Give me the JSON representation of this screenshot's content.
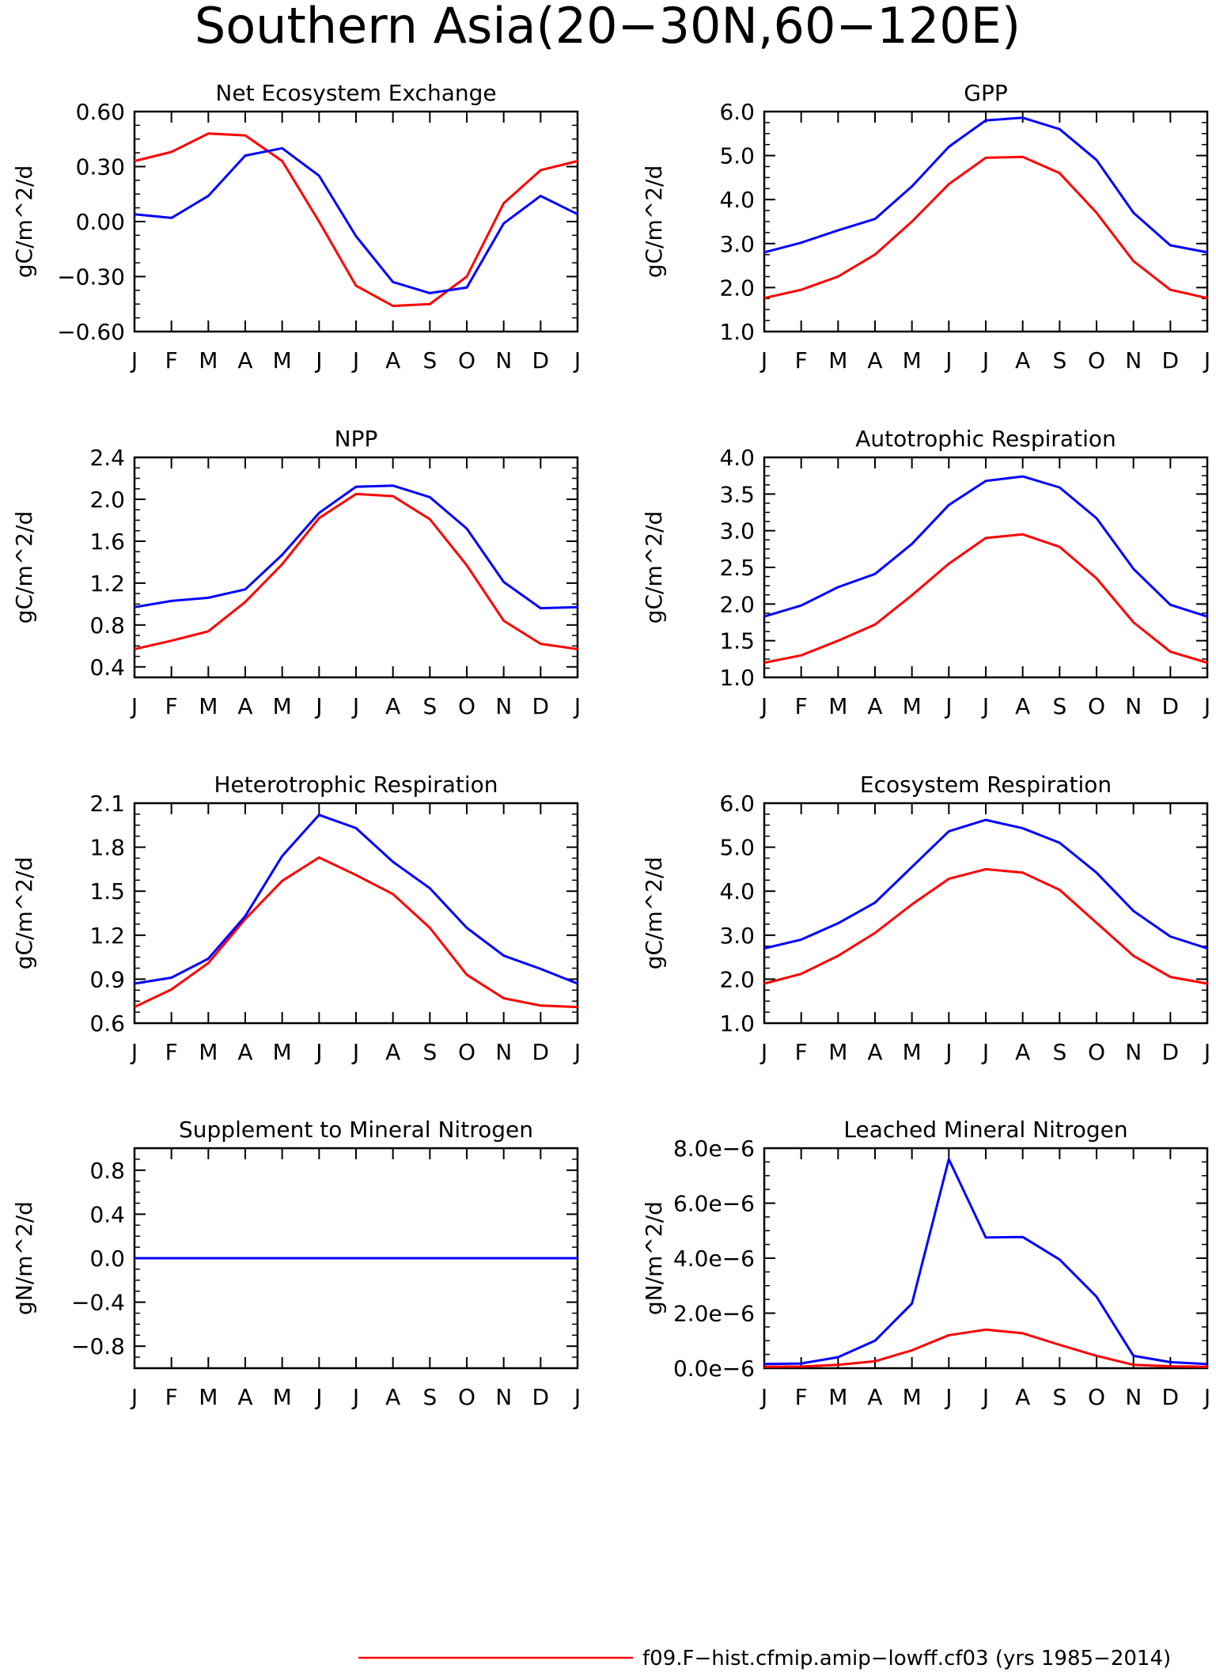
{
  "figure": {
    "title": "Southern Asia(20−30N,60−120E)",
    "legend": {
      "entries": [
        {
          "label": "f09.F−hist.cfmip.amip−lowff.cf03 (yrs 1985−2014)",
          "color": "#ff0000"
        }
      ],
      "placement": "bottom-center"
    }
  },
  "chart_data": [
    {
      "type": "line",
      "title": "Net Ecosystem Exchange",
      "ylabel": "gC/m^2/d",
      "categories": [
        "J",
        "F",
        "M",
        "A",
        "M",
        "J",
        "J",
        "A",
        "S",
        "O",
        "N",
        "D",
        "J"
      ],
      "ylim": [
        -0.6,
        0.6
      ],
      "yticks": [
        "0.60",
        "0.30",
        "0.00",
        "−0.30",
        "−0.60"
      ],
      "ytick_values": [
        0.6,
        0.3,
        0.0,
        -0.3,
        -0.6
      ],
      "grid": false,
      "series": [
        {
          "color": "#ff0000",
          "values": [
            0.33,
            0.38,
            0.48,
            0.47,
            0.33,
            0.0,
            -0.35,
            -0.46,
            -0.45,
            -0.3,
            0.1,
            0.28,
            0.33
          ]
        },
        {
          "color": "#0000ff",
          "values": [
            0.04,
            0.02,
            0.14,
            0.36,
            0.4,
            0.25,
            -0.08,
            -0.33,
            -0.39,
            -0.36,
            -0.01,
            0.14,
            0.04
          ]
        }
      ]
    },
    {
      "type": "line",
      "title": "GPP",
      "ylabel": "gC/m^2/d",
      "categories": [
        "J",
        "F",
        "M",
        "A",
        "M",
        "J",
        "J",
        "A",
        "S",
        "O",
        "N",
        "D",
        "J"
      ],
      "ylim": [
        1.0,
        6.0
      ],
      "yticks": [
        "6.0",
        "5.0",
        "4.0",
        "3.0",
        "2.0",
        "1.0"
      ],
      "ytick_values": [
        6.0,
        5.0,
        4.0,
        3.0,
        2.0,
        1.0
      ],
      "grid": false,
      "series": [
        {
          "color": "#ff0000",
          "values": [
            1.76,
            1.95,
            2.25,
            2.75,
            3.5,
            4.35,
            4.95,
            4.97,
            4.6,
            3.7,
            2.6,
            1.95,
            1.76
          ]
        },
        {
          "color": "#0000ff",
          "values": [
            2.8,
            3.02,
            3.3,
            3.56,
            4.3,
            5.2,
            5.8,
            5.86,
            5.6,
            4.9,
            3.7,
            2.96,
            2.8
          ]
        }
      ]
    },
    {
      "type": "line",
      "title": "NPP",
      "ylabel": "gC/m^2/d",
      "categories": [
        "J",
        "F",
        "M",
        "A",
        "M",
        "J",
        "J",
        "A",
        "S",
        "O",
        "N",
        "D",
        "J"
      ],
      "ylim": [
        0.3,
        2.4
      ],
      "yticks": [
        "2.4",
        "2.0",
        "1.6",
        "1.2",
        "0.8",
        "0.4"
      ],
      "ytick_values": [
        2.4,
        2.0,
        1.6,
        1.2,
        0.8,
        0.4
      ],
      "grid": false,
      "series": [
        {
          "color": "#ff0000",
          "values": [
            0.57,
            0.65,
            0.74,
            1.02,
            1.38,
            1.82,
            2.05,
            2.03,
            1.81,
            1.37,
            0.84,
            0.62,
            0.57
          ]
        },
        {
          "color": "#0000ff",
          "values": [
            0.97,
            1.03,
            1.06,
            1.14,
            1.47,
            1.87,
            2.12,
            2.13,
            2.02,
            1.72,
            1.21,
            0.96,
            0.97
          ]
        }
      ]
    },
    {
      "type": "line",
      "title": "Autotrophic Respiration",
      "ylabel": "gC/m^2/d",
      "categories": [
        "J",
        "F",
        "M",
        "A",
        "M",
        "J",
        "J",
        "A",
        "S",
        "O",
        "N",
        "D",
        "J"
      ],
      "ylim": [
        1.0,
        4.0
      ],
      "yticks": [
        "4.0",
        "3.5",
        "3.0",
        "2.5",
        "2.0",
        "1.5",
        "1.0"
      ],
      "ytick_values": [
        4.0,
        3.5,
        3.0,
        2.5,
        2.0,
        1.5,
        1.0
      ],
      "grid": false,
      "series": [
        {
          "color": "#ff0000",
          "values": [
            1.2,
            1.3,
            1.5,
            1.72,
            2.12,
            2.55,
            2.9,
            2.95,
            2.78,
            2.35,
            1.75,
            1.35,
            1.2
          ]
        },
        {
          "color": "#0000ff",
          "values": [
            1.83,
            1.98,
            2.23,
            2.41,
            2.82,
            3.35,
            3.68,
            3.74,
            3.59,
            3.17,
            2.48,
            1.99,
            1.83
          ]
        }
      ]
    },
    {
      "type": "line",
      "title": "Heterotrophic Respiration",
      "ylabel": "gC/m^2/d",
      "categories": [
        "J",
        "F",
        "M",
        "A",
        "M",
        "J",
        "J",
        "A",
        "S",
        "O",
        "N",
        "D",
        "J"
      ],
      "ylim": [
        0.6,
        2.1
      ],
      "yticks": [
        "2.1",
        "1.8",
        "1.5",
        "1.2",
        "0.9",
        "0.6"
      ],
      "ytick_values": [
        2.1,
        1.8,
        1.5,
        1.2,
        0.9,
        0.6
      ],
      "grid": false,
      "series": [
        {
          "color": "#ff0000",
          "values": [
            0.71,
            0.83,
            1.01,
            1.31,
            1.57,
            1.73,
            1.61,
            1.48,
            1.25,
            0.93,
            0.77,
            0.72,
            0.71
          ]
        },
        {
          "color": "#0000ff",
          "values": [
            0.87,
            0.91,
            1.04,
            1.33,
            1.74,
            2.02,
            1.93,
            1.7,
            1.52,
            1.25,
            1.06,
            0.97,
            0.87
          ]
        }
      ]
    },
    {
      "type": "line",
      "title": "Ecosystem Respiration",
      "ylabel": "gC/m^2/d",
      "categories": [
        "J",
        "F",
        "M",
        "A",
        "M",
        "J",
        "J",
        "A",
        "S",
        "O",
        "N",
        "D",
        "J"
      ],
      "ylim": [
        1.0,
        6.0
      ],
      "yticks": [
        "6.0",
        "5.0",
        "4.0",
        "3.0",
        "2.0",
        "1.0"
      ],
      "ytick_values": [
        6.0,
        5.0,
        4.0,
        3.0,
        2.0,
        1.0
      ],
      "grid": false,
      "series": [
        {
          "color": "#ff0000",
          "values": [
            1.9,
            2.12,
            2.53,
            3.05,
            3.7,
            4.28,
            4.5,
            4.42,
            4.03,
            3.28,
            2.53,
            2.05,
            1.9
          ]
        },
        {
          "color": "#0000ff",
          "values": [
            2.7,
            2.9,
            3.27,
            3.74,
            4.55,
            5.36,
            5.62,
            5.43,
            5.1,
            4.42,
            3.55,
            2.97,
            2.7
          ]
        }
      ]
    },
    {
      "type": "line",
      "title": "Supplement to Mineral Nitrogen",
      "ylabel": "gN/m^2/d",
      "categories": [
        "J",
        "F",
        "M",
        "A",
        "M",
        "J",
        "J",
        "A",
        "S",
        "O",
        "N",
        "D",
        "J"
      ],
      "ylim": [
        -1.0,
        1.0
      ],
      "yticks": [
        "0.8",
        "0.4",
        "0.0",
        "−0.4",
        "−0.8"
      ],
      "ytick_values": [
        0.8,
        0.4,
        0.0,
        -0.4,
        -0.8
      ],
      "grid": false,
      "series": [
        {
          "color": "#ff0000",
          "values": [
            0,
            0,
            0,
            0,
            0,
            0,
            0,
            0,
            0,
            0,
            0,
            0,
            0
          ]
        },
        {
          "color": "#0000ff",
          "values": [
            0,
            0,
            0,
            0,
            0,
            0,
            0,
            0,
            0,
            0,
            0,
            0,
            0
          ]
        }
      ]
    },
    {
      "type": "line",
      "title": "Leached Mineral Nitrogen",
      "ylabel": "gN/m^2/d",
      "categories": [
        "J",
        "F",
        "M",
        "A",
        "M",
        "J",
        "J",
        "A",
        "S",
        "O",
        "N",
        "D",
        "J"
      ],
      "ylim": [
        0.0,
        8e-06
      ],
      "yticks": [
        "8.0e−6",
        "6.0e−6",
        "4.0e−6",
        "2.0e−6",
        "0.0e−6"
      ],
      "ytick_values": [
        8e-06,
        6e-06,
        4e-06,
        2e-06,
        0.0
      ],
      "grid": false,
      "series": [
        {
          "color": "#ff0000",
          "values": [
            5e-08,
            6e-08,
            1.2e-07,
            2.5e-07,
            6.5e-07,
            1.2e-06,
            1.4e-06,
            1.27e-06,
            8.5e-07,
            4.5e-07,
            1.2e-07,
            7e-08,
            5e-08
          ]
        },
        {
          "color": "#0000ff",
          "values": [
            1.5e-07,
            1.7e-07,
            4e-07,
            1e-06,
            2.35e-06,
            7.6e-06,
            4.75e-06,
            4.77e-06,
            3.95e-06,
            2.6e-06,
            4.5e-07,
            2.2e-07,
            1.5e-07
          ]
        }
      ]
    }
  ]
}
